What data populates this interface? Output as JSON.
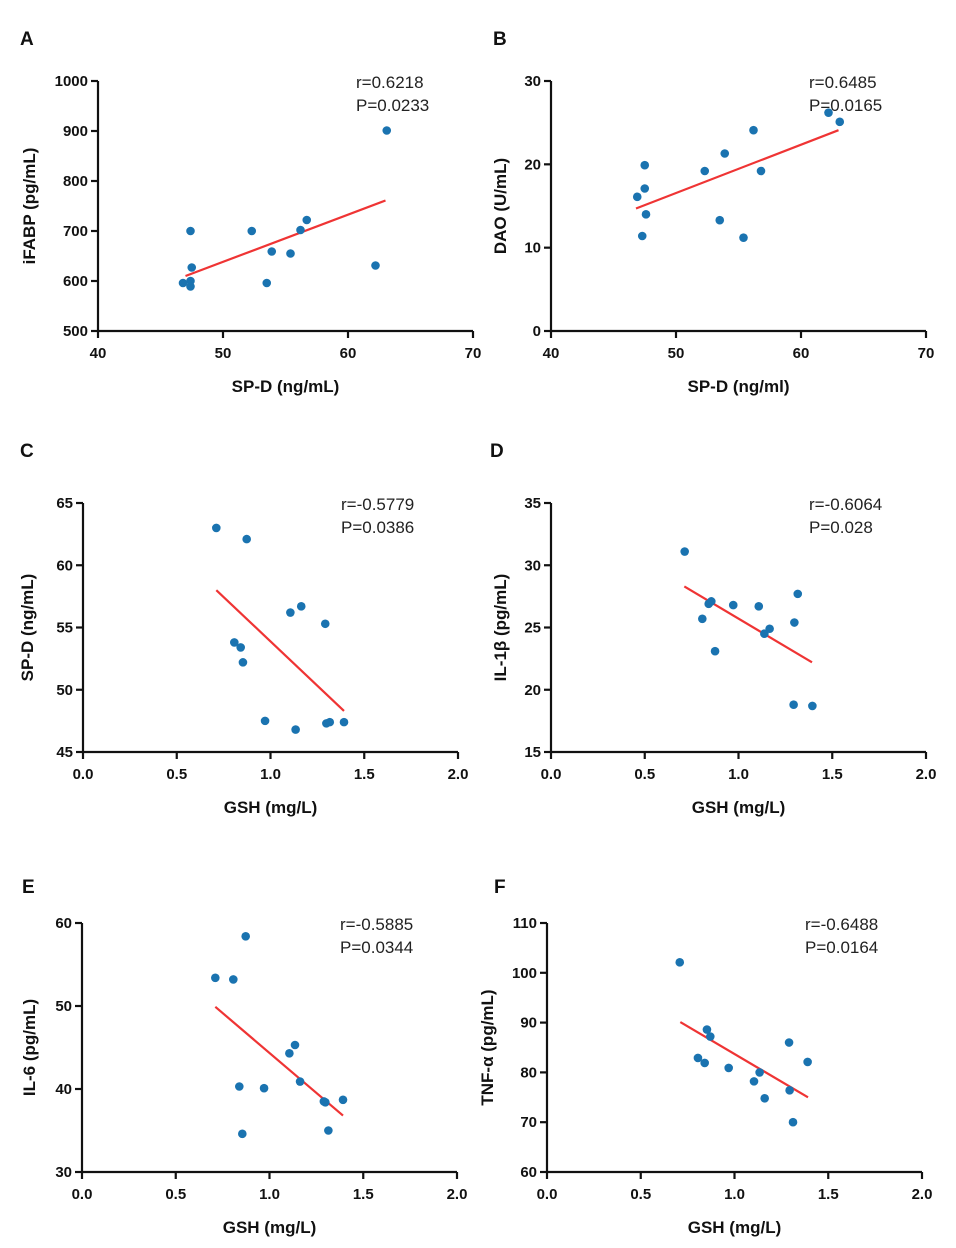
{
  "chart_data": [
    {
      "panel": "A",
      "type": "scatter",
      "xlabel": "SP-D (ng/mL)",
      "ylabel": "iFABP (pg/mL)",
      "xlim": [
        40,
        70
      ],
      "ylim": [
        500,
        1000
      ],
      "xticks": [
        40,
        50,
        60,
        70
      ],
      "yticks": [
        500,
        600,
        700,
        800,
        900,
        1000
      ],
      "xtick_labels": [
        "40",
        "50",
        "60",
        "70"
      ],
      "ytick_labels": [
        "500",
        "600",
        "700",
        "800",
        "900",
        "1000"
      ],
      "annotation": [
        "r=0.6218",
        "P=0.0233"
      ],
      "points": [
        [
          46.8,
          596
        ],
        [
          47.4,
          700
        ],
        [
          47.5,
          627
        ],
        [
          47.4,
          600
        ],
        [
          47.4,
          589
        ],
        [
          52.3,
          700
        ],
        [
          53.9,
          659
        ],
        [
          53.5,
          596
        ],
        [
          55.4,
          655
        ],
        [
          56.2,
          702
        ],
        [
          56.7,
          722
        ],
        [
          62.2,
          631
        ],
        [
          63.1,
          901
        ]
      ],
      "fit_line": [
        [
          47.0,
          610
        ],
        [
          63.0,
          761
        ]
      ],
      "grid": false
    },
    {
      "panel": "B",
      "type": "scatter",
      "xlabel": "SP-D (ng/ml)",
      "ylabel": "DAO (U/mL)",
      "xlim": [
        40,
        70
      ],
      "ylim": [
        0,
        30
      ],
      "xticks": [
        40,
        50,
        60,
        70
      ],
      "yticks": [
        0,
        10,
        20,
        30
      ],
      "xtick_labels": [
        "40",
        "50",
        "60",
        "70"
      ],
      "ytick_labels": [
        "0",
        "10",
        "20",
        "30"
      ],
      "annotation": [
        "r=0.6485",
        "P=0.0165"
      ],
      "points": [
        [
          46.9,
          16.1
        ],
        [
          47.5,
          19.9
        ],
        [
          47.5,
          17.1
        ],
        [
          47.6,
          14.0
        ],
        [
          47.3,
          11.4
        ],
        [
          52.3,
          19.2
        ],
        [
          53.9,
          21.3
        ],
        [
          53.5,
          13.3
        ],
        [
          55.4,
          11.2
        ],
        [
          56.2,
          24.1
        ],
        [
          56.8,
          19.2
        ],
        [
          62.2,
          26.2
        ],
        [
          63.1,
          25.1
        ]
      ],
      "fit_line": [
        [
          46.8,
          14.7
        ],
        [
          63.0,
          24.1
        ]
      ],
      "grid": false
    },
    {
      "panel": "C",
      "type": "scatter",
      "xlabel": "GSH (mg/L)",
      "ylabel": "SP-D (ng/mL)",
      "xlim": [
        0,
        2
      ],
      "ylim": [
        45,
        65
      ],
      "xticks": [
        0,
        0.5,
        1,
        1.5,
        2
      ],
      "yticks": [
        45,
        50,
        55,
        60,
        65
      ],
      "xtick_labels": [
        "0.0",
        "0.5",
        "1.0",
        "1.5",
        "2.0"
      ],
      "ytick_labels": [
        "45",
        "50",
        "55",
        "60",
        "65"
      ],
      "annotation": [
        "r=-0.5779",
        "P=0.0386"
      ],
      "points": [
        [
          0.711,
          63.0
        ],
        [
          0.873,
          62.1
        ],
        [
          0.807,
          53.8
        ],
        [
          0.841,
          53.4
        ],
        [
          0.853,
          52.2
        ],
        [
          1.106,
          56.2
        ],
        [
          1.164,
          56.7
        ],
        [
          1.292,
          55.3
        ],
        [
          0.971,
          47.5
        ],
        [
          1.134,
          46.8
        ],
        [
          1.298,
          47.3
        ],
        [
          1.316,
          47.4
        ],
        [
          1.392,
          47.4
        ]
      ],
      "fit_line": [
        [
          0.711,
          58.0
        ],
        [
          1.392,
          48.3
        ]
      ],
      "grid": false
    },
    {
      "panel": "D",
      "type": "scatter",
      "xlabel": "GSH (mg/L)",
      "ylabel": "IL-1β (pg/mL)",
      "xlim": [
        0,
        2
      ],
      "ylim": [
        15,
        35
      ],
      "xticks": [
        0,
        0.5,
        1,
        1.5,
        2
      ],
      "yticks": [
        15,
        20,
        25,
        30,
        35
      ],
      "xtick_labels": [
        "0.0",
        "0.5",
        "1.0",
        "1.5",
        "2.0"
      ],
      "ytick_labels": [
        "15",
        "20",
        "25",
        "30",
        "35"
      ],
      "annotation": [
        "r=-0.6064",
        "P=0.028"
      ],
      "points": [
        [
          0.713,
          31.1
        ],
        [
          0.807,
          25.7
        ],
        [
          0.841,
          26.9
        ],
        [
          0.855,
          27.1
        ],
        [
          0.875,
          23.1
        ],
        [
          0.972,
          26.8
        ],
        [
          1.108,
          26.7
        ],
        [
          1.138,
          24.5
        ],
        [
          1.166,
          24.9
        ],
        [
          1.298,
          25.4
        ],
        [
          1.316,
          27.7
        ],
        [
          1.294,
          18.8
        ],
        [
          1.394,
          18.7
        ]
      ],
      "fit_line": [
        [
          0.711,
          28.3
        ],
        [
          1.392,
          22.2
        ]
      ],
      "grid": false
    },
    {
      "panel": "E",
      "type": "scatter",
      "xlabel": "GSH (mg/L)",
      "ylabel": "IL-6 (pg/mL)",
      "xlim": [
        0,
        2
      ],
      "ylim": [
        30,
        60
      ],
      "xticks": [
        0,
        0.5,
        1,
        1.5,
        2
      ],
      "yticks": [
        30,
        40,
        50,
        60
      ],
      "xtick_labels": [
        "0.0",
        "0.5",
        "1.0",
        "1.5",
        "2.0"
      ],
      "ytick_labels": [
        "30",
        "40",
        "50",
        "60"
      ],
      "annotation": [
        "r=-0.5885",
        "P=0.0344"
      ],
      "points": [
        [
          0.711,
          53.4
        ],
        [
          0.807,
          53.2
        ],
        [
          0.873,
          58.4
        ],
        [
          0.839,
          40.3
        ],
        [
          0.855,
          34.6
        ],
        [
          0.971,
          40.1
        ],
        [
          1.106,
          44.3
        ],
        [
          1.136,
          45.3
        ],
        [
          1.163,
          40.9
        ],
        [
          1.29,
          38.5
        ],
        [
          1.298,
          38.4
        ],
        [
          1.314,
          35.0
        ],
        [
          1.392,
          38.7
        ]
      ],
      "fit_line": [
        [
          0.711,
          49.9
        ],
        [
          1.392,
          36.8
        ]
      ],
      "grid": false
    },
    {
      "panel": "F",
      "type": "scatter",
      "xlabel": "GSH (mg/L)",
      "ylabel": "TNF-α (pg/mL)",
      "xlim": [
        0,
        2
      ],
      "ylim": [
        60,
        110
      ],
      "xticks": [
        0,
        0.5,
        1,
        1.5,
        2
      ],
      "yticks": [
        60,
        70,
        80,
        90,
        100,
        110
      ],
      "xtick_labels": [
        "0.0",
        "0.5",
        "1.0",
        "1.5",
        "2.0"
      ],
      "ytick_labels": [
        "60",
        "70",
        "80",
        "90",
        "100",
        "110"
      ],
      "annotation": [
        "r=-0.6488",
        "P=0.0164"
      ],
      "points": [
        [
          0.708,
          102.1
        ],
        [
          0.805,
          82.9
        ],
        [
          0.841,
          81.9
        ],
        [
          0.853,
          88.6
        ],
        [
          0.871,
          87.2
        ],
        [
          0.969,
          80.9
        ],
        [
          1.104,
          78.2
        ],
        [
          1.134,
          80.0
        ],
        [
          1.161,
          74.8
        ],
        [
          1.291,
          86.0
        ],
        [
          1.294,
          76.4
        ],
        [
          1.312,
          70.0
        ],
        [
          1.39,
          82.1
        ]
      ],
      "fit_line": [
        [
          0.711,
          90.1
        ],
        [
          1.392,
          75.0
        ]
      ],
      "grid": false
    }
  ],
  "colors": {
    "points": "#1a73b0",
    "fit_line": "#ef3434",
    "axes": "#111111"
  }
}
